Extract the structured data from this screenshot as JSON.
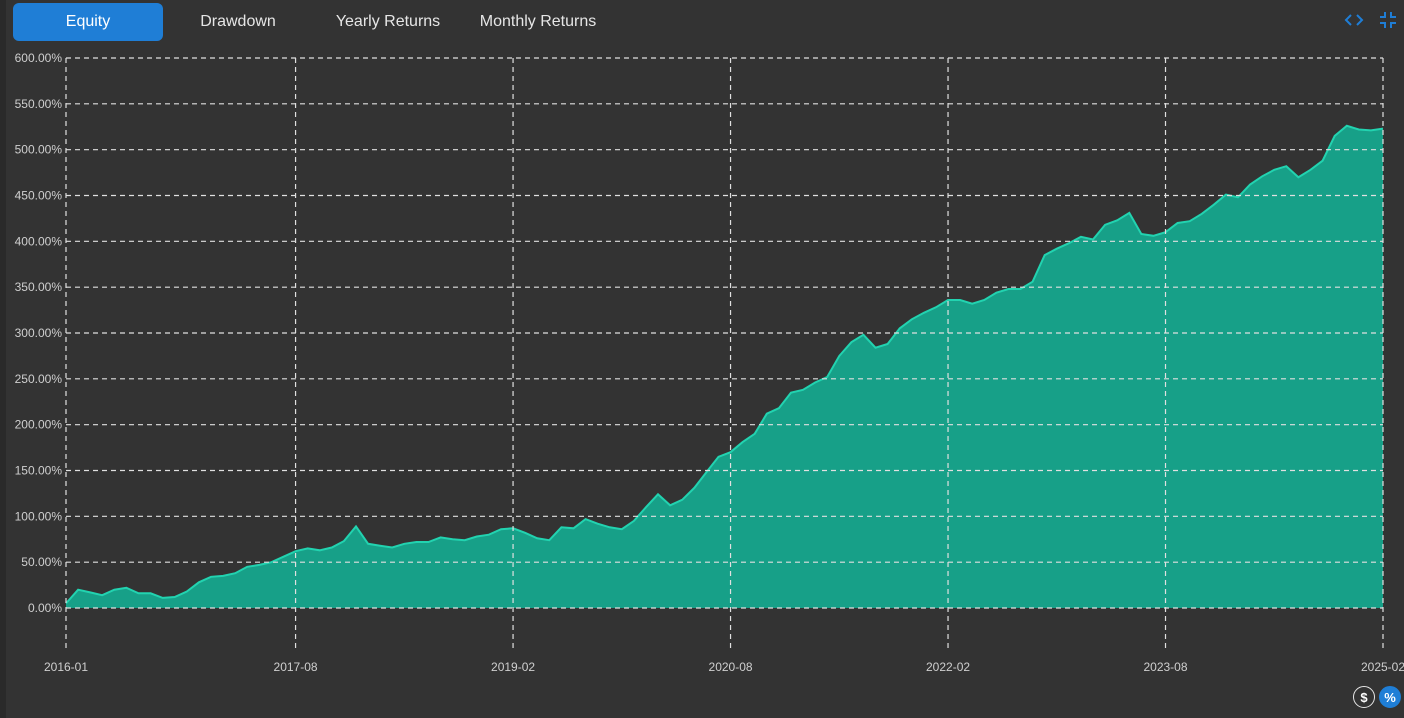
{
  "tabs": [
    {
      "label": "Equity",
      "active": true
    },
    {
      "label": "Drawdown",
      "active": false
    },
    {
      "label": "Yearly Returns",
      "active": false
    },
    {
      "label": "Monthly Returns",
      "active": false
    }
  ],
  "icons": {
    "code": "code-icon",
    "collapse": "collapse-icon",
    "dollar": "$",
    "percent": "%"
  },
  "colors": {
    "accent": "#1f7ed6",
    "area_fill": "#17a088",
    "area_line": "#22d3b0",
    "grid": "#e0e0e0",
    "background": "#333333"
  },
  "chart_data": {
    "type": "area",
    "title": "",
    "xlabel": "",
    "ylabel": "",
    "x_ticks": [
      "2016-01",
      "2017-08",
      "2019-02",
      "2020-08",
      "2022-02",
      "2023-08",
      "2025-02"
    ],
    "y_ticks": [
      "0.00%",
      "50.00%",
      "100.00%",
      "150.00%",
      "200.00%",
      "250.00%",
      "300.00%",
      "350.00%",
      "400.00%",
      "450.00%",
      "500.00%",
      "550.00%",
      "600.00%"
    ],
    "ylim": [
      0,
      600
    ],
    "xlim": [
      "2016-01",
      "2025-02"
    ],
    "grid": true,
    "legend": "none",
    "series": [
      {
        "points": [
          [
            "2016-01",
            5
          ],
          [
            "2016-02",
            20
          ],
          [
            "2016-03",
            17
          ],
          [
            "2016-04",
            14
          ],
          [
            "2016-05",
            20
          ],
          [
            "2016-06",
            22
          ],
          [
            "2016-07",
            16
          ],
          [
            "2016-08",
            16
          ],
          [
            "2016-09",
            11
          ],
          [
            "2016-10",
            12
          ],
          [
            "2016-11",
            18
          ],
          [
            "2016-12",
            28
          ],
          [
            "2017-01",
            34
          ],
          [
            "2017-02",
            35
          ],
          [
            "2017-03",
            38
          ],
          [
            "2017-04",
            45
          ],
          [
            "2017-05",
            47
          ],
          [
            "2017-06",
            50
          ],
          [
            "2017-07",
            56
          ],
          [
            "2017-08",
            62
          ],
          [
            "2017-09",
            65
          ],
          [
            "2017-10",
            63
          ],
          [
            "2017-11",
            66
          ],
          [
            "2017-12",
            73
          ],
          [
            "2018-01",
            89
          ],
          [
            "2018-02",
            70
          ],
          [
            "2018-03",
            68
          ],
          [
            "2018-04",
            66
          ],
          [
            "2018-05",
            70
          ],
          [
            "2018-06",
            72
          ],
          [
            "2018-07",
            72
          ],
          [
            "2018-08",
            77
          ],
          [
            "2018-09",
            75
          ],
          [
            "2018-10",
            74
          ],
          [
            "2018-11",
            78
          ],
          [
            "2018-12",
            80
          ],
          [
            "2019-01",
            86
          ],
          [
            "2019-02",
            87
          ],
          [
            "2019-03",
            82
          ],
          [
            "2019-04",
            76
          ],
          [
            "2019-05",
            74
          ],
          [
            "2019-06",
            88
          ],
          [
            "2019-07",
            87
          ],
          [
            "2019-08",
            97
          ],
          [
            "2019-09",
            92
          ],
          [
            "2019-10",
            88
          ],
          [
            "2019-11",
            86
          ],
          [
            "2019-12",
            95
          ],
          [
            "2020-01",
            110
          ],
          [
            "2020-02",
            124
          ],
          [
            "2020-03",
            112
          ],
          [
            "2020-04",
            118
          ],
          [
            "2020-05",
            131
          ],
          [
            "2020-06",
            148
          ],
          [
            "2020-07",
            165
          ],
          [
            "2020-08",
            170
          ],
          [
            "2020-09",
            181
          ],
          [
            "2020-10",
            190
          ],
          [
            "2020-11",
            212
          ],
          [
            "2020-12",
            218
          ],
          [
            "2021-01",
            235
          ],
          [
            "2021-02",
            238
          ],
          [
            "2021-03",
            246
          ],
          [
            "2021-04",
            252
          ],
          [
            "2021-05",
            275
          ],
          [
            "2021-06",
            290
          ],
          [
            "2021-07",
            298
          ],
          [
            "2021-08",
            284
          ],
          [
            "2021-09",
            288
          ],
          [
            "2021-10",
            305
          ],
          [
            "2021-11",
            315
          ],
          [
            "2021-12",
            322
          ],
          [
            "2022-01",
            328
          ],
          [
            "2022-02",
            336
          ],
          [
            "2022-03",
            336
          ],
          [
            "2022-04",
            332
          ],
          [
            "2022-05",
            336
          ],
          [
            "2022-06",
            344
          ],
          [
            "2022-07",
            348
          ],
          [
            "2022-08",
            348
          ],
          [
            "2022-09",
            356
          ],
          [
            "2022-10",
            385
          ],
          [
            "2022-11",
            392
          ],
          [
            "2022-12",
            398
          ],
          [
            "2023-01",
            405
          ],
          [
            "2023-02",
            402
          ],
          [
            "2023-03",
            418
          ],
          [
            "2023-04",
            423
          ],
          [
            "2023-05",
            431
          ],
          [
            "2023-06",
            408
          ],
          [
            "2023-07",
            406
          ],
          [
            "2023-08",
            410
          ],
          [
            "2023-09",
            420
          ],
          [
            "2023-10",
            422
          ],
          [
            "2023-11",
            430
          ],
          [
            "2023-12",
            440
          ],
          [
            "2024-01",
            451
          ],
          [
            "2024-02",
            448
          ],
          [
            "2024-03",
            462
          ],
          [
            "2024-04",
            471
          ],
          [
            "2024-05",
            478
          ],
          [
            "2024-06",
            482
          ],
          [
            "2024-07",
            470
          ],
          [
            "2024-08",
            478
          ],
          [
            "2024-09",
            488
          ],
          [
            "2024-10",
            515
          ],
          [
            "2024-11",
            526
          ],
          [
            "2024-12",
            522
          ],
          [
            "2025-01",
            521
          ],
          [
            "2025-02",
            523
          ]
        ]
      }
    ]
  }
}
